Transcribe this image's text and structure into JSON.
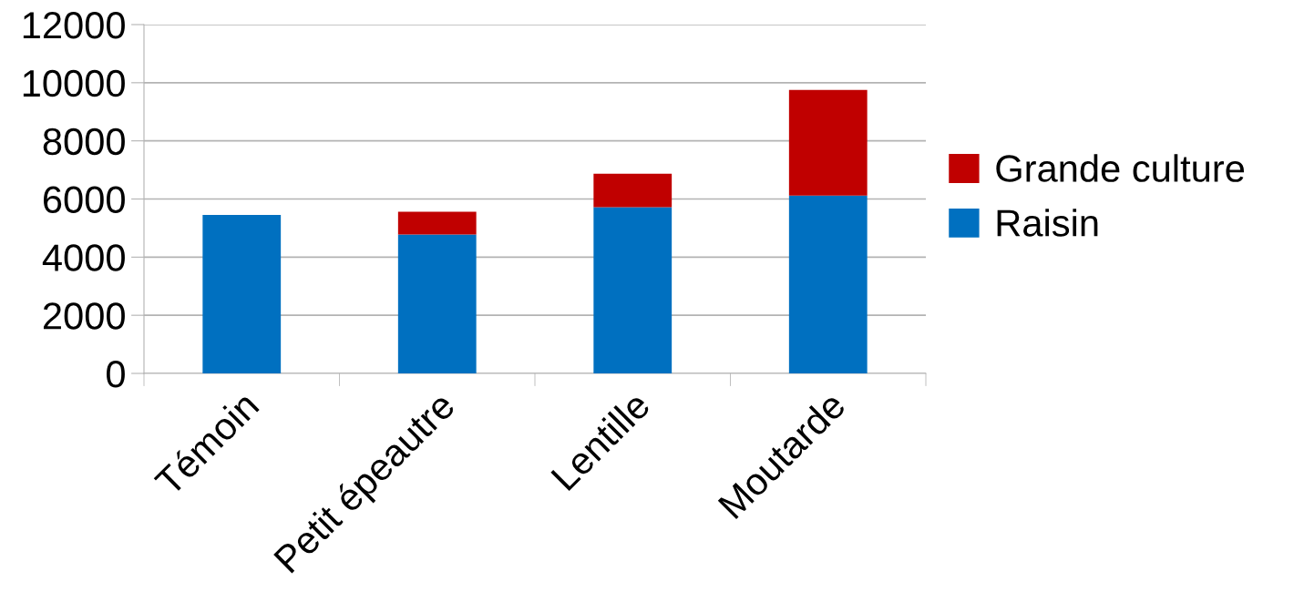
{
  "chart_data": {
    "type": "bar",
    "stacked": true,
    "categories": [
      "Témoin",
      "Petit épeautre",
      "Lentille",
      "Moutarde"
    ],
    "series": [
      {
        "name": "Raisin",
        "color": "#0070c0",
        "values": [
          5450,
          4780,
          5720,
          6120
        ]
      },
      {
        "name": "Grande culture",
        "color": "#c00000",
        "values": [
          0,
          780,
          1150,
          3630
        ]
      }
    ],
    "ylim": [
      0,
      12000
    ],
    "yticks": [
      0,
      2000,
      4000,
      6000,
      8000,
      10000,
      12000
    ],
    "grid": "y",
    "legend": "right"
  }
}
